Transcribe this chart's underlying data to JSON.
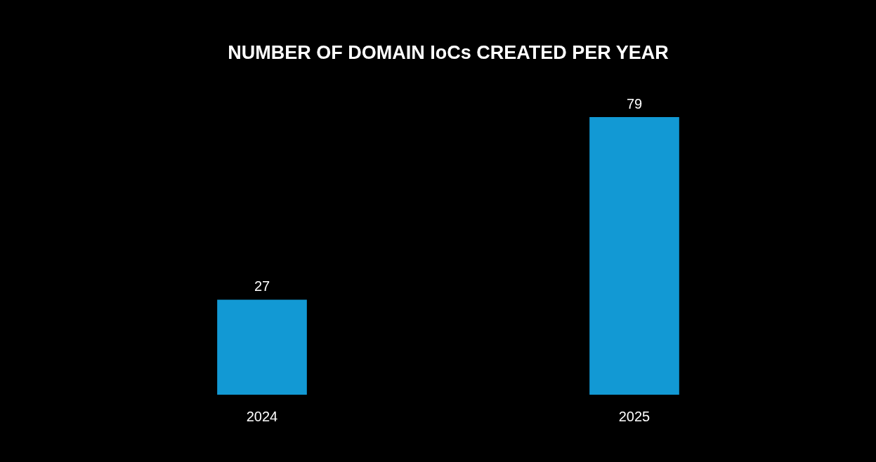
{
  "chart_data": {
    "type": "bar",
    "title": "NUMBER OF DOMAIN IoCs CREATED PER YEAR",
    "categories": [
      "2024",
      "2025"
    ],
    "values": [
      27,
      79
    ],
    "color": "#1299d4",
    "data_labels": true,
    "legend": false
  }
}
